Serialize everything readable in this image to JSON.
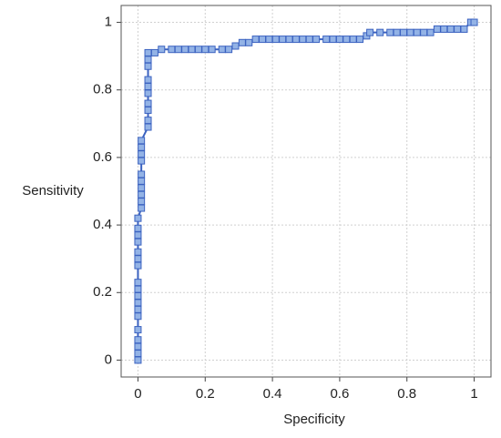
{
  "chart_data": {
    "type": "line",
    "x_label": "Specificity",
    "y_label": "Sensitivity",
    "color": "#3b62c0",
    "marker_color": "#93b3e6",
    "grid": true,
    "xlim": [
      -0.05,
      1.05
    ],
    "ylim": [
      -0.05,
      1.05
    ],
    "xticks": [
      0,
      0.2,
      0.4,
      0.6,
      0.8,
      1
    ],
    "yticks": [
      0,
      0.2,
      0.4,
      0.6,
      0.8,
      1
    ],
    "series": [
      {
        "x": [
          0,
          0,
          0,
          0,
          0,
          0,
          0,
          0,
          0,
          0,
          0,
          0,
          0,
          0,
          0,
          0,
          0,
          0,
          0.01,
          0.01,
          0.01,
          0.01,
          0.01,
          0.01,
          0.01,
          0.01,
          0.01,
          0.01,
          0.03,
          0.03,
          0.03,
          0.03,
          0.03,
          0.03,
          0.03,
          0.03,
          0.03,
          0.03,
          0.05,
          0.07,
          0.1,
          0.12,
          0.14,
          0.16,
          0.18,
          0.2,
          0.22,
          0.25,
          0.27,
          0.29,
          0.31,
          0.33,
          0.35,
          0.37,
          0.39,
          0.41,
          0.43,
          0.45,
          0.47,
          0.49,
          0.51,
          0.53,
          0.56,
          0.58,
          0.6,
          0.62,
          0.64,
          0.66,
          0.68,
          0.69,
          0.72,
          0.75,
          0.77,
          0.79,
          0.81,
          0.83,
          0.85,
          0.87,
          0.89,
          0.91,
          0.93,
          0.95,
          0.97,
          0.99,
          1
        ],
        "values": [
          0,
          0.02,
          0.04,
          0.06,
          0.09,
          0.13,
          0.15,
          0.17,
          0.19,
          0.21,
          0.23,
          0.28,
          0.3,
          0.32,
          0.35,
          0.37,
          0.39,
          0.42,
          0.45,
          0.47,
          0.49,
          0.51,
          0.53,
          0.55,
          0.59,
          0.61,
          0.63,
          0.65,
          0.69,
          0.71,
          0.74,
          0.76,
          0.79,
          0.81,
          0.83,
          0.87,
          0.89,
          0.91,
          0.91,
          0.92,
          0.92,
          0.92,
          0.92,
          0.92,
          0.92,
          0.92,
          0.92,
          0.92,
          0.92,
          0.93,
          0.94,
          0.94,
          0.95,
          0.95,
          0.95,
          0.95,
          0.95,
          0.95,
          0.95,
          0.95,
          0.95,
          0.95,
          0.95,
          0.95,
          0.95,
          0.95,
          0.95,
          0.95,
          0.96,
          0.97,
          0.97,
          0.97,
          0.97,
          0.97,
          0.97,
          0.97,
          0.97,
          0.97,
          0.98,
          0.98,
          0.98,
          0.98,
          0.98,
          1,
          1
        ]
      }
    ]
  }
}
